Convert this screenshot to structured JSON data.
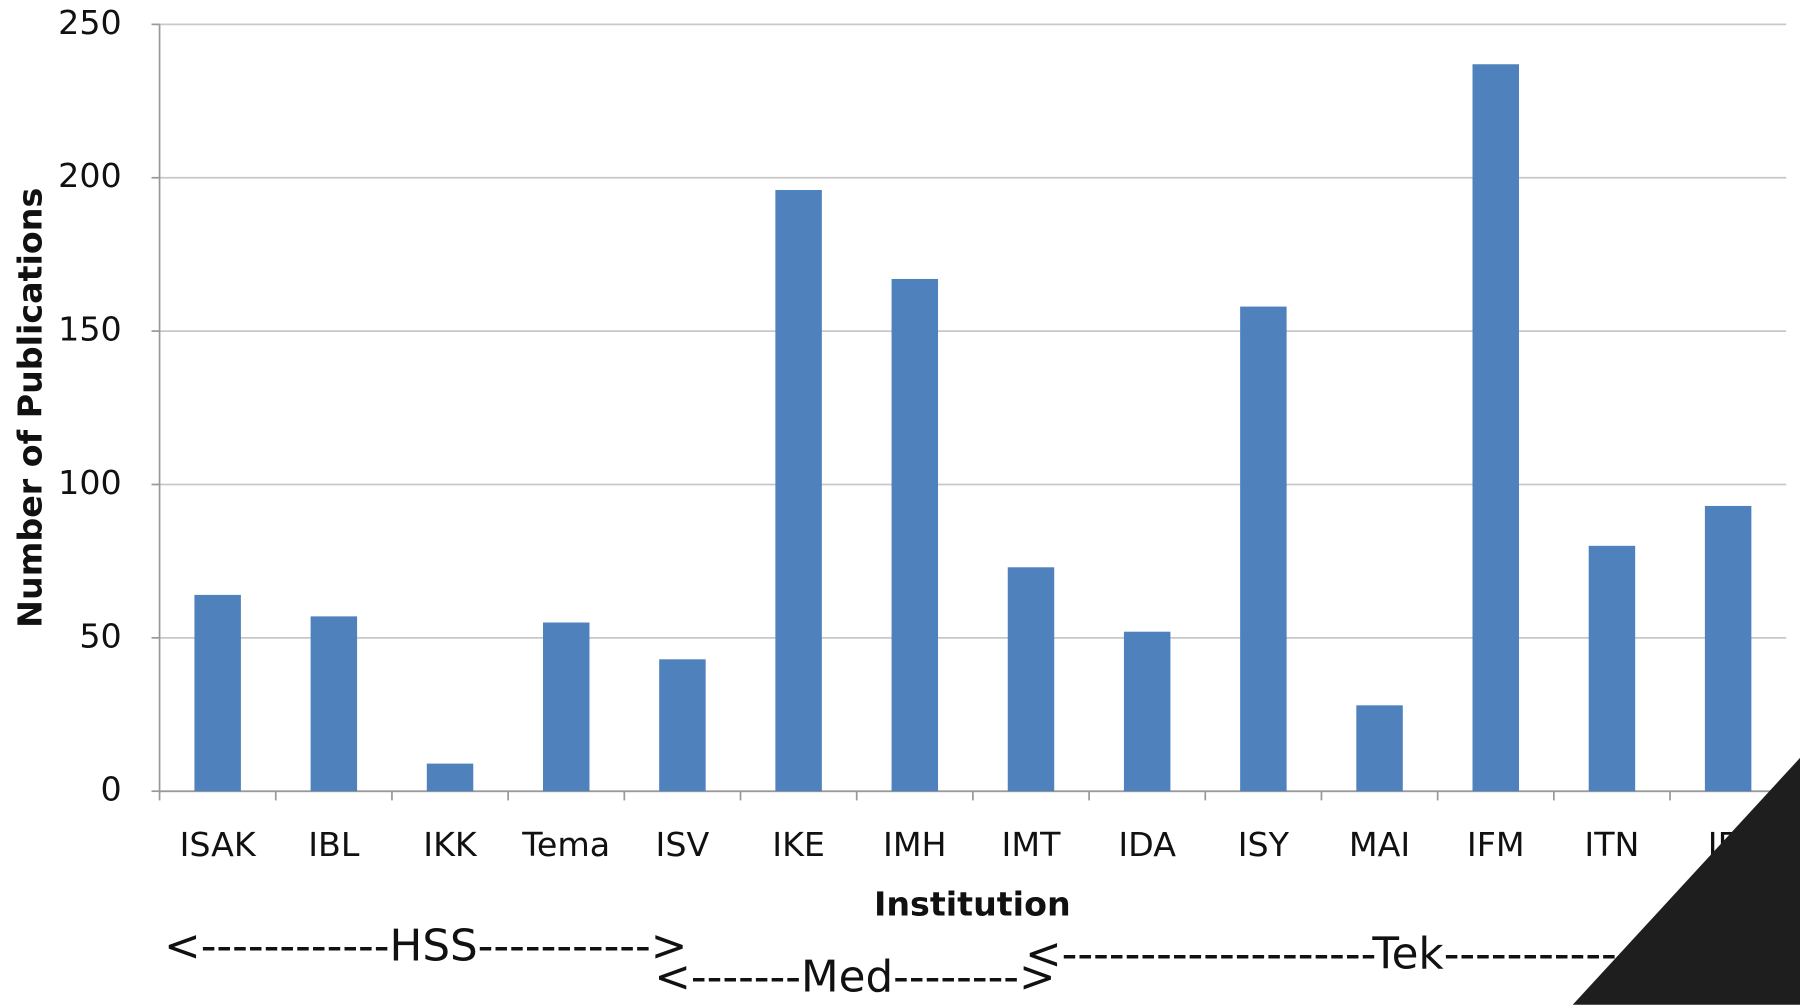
{
  "chart_data": {
    "type": "bar",
    "x_label": "Institution",
    "y_label": "Number of Publications",
    "categories": [
      "ISAK",
      "IBL",
      "IKK",
      "Tema",
      "ISV",
      "IKE",
      "IMH",
      "IMT",
      "IDA",
      "ISY",
      "MAI",
      "IFM",
      "ITN",
      "IEI"
    ],
    "values": [
      64,
      57,
      9,
      55,
      43,
      196,
      167,
      73,
      52,
      158,
      28,
      237,
      80,
      93
    ],
    "color": "#4f81bd",
    "ylim": [
      0,
      250
    ],
    "yticks": [
      0,
      50,
      100,
      150,
      200,
      250
    ],
    "grid": true,
    "annotations": [
      "<------------HSS----------->",
      "<-------Med-------->",
      "<--------------------Tek------------------"
    ]
  }
}
